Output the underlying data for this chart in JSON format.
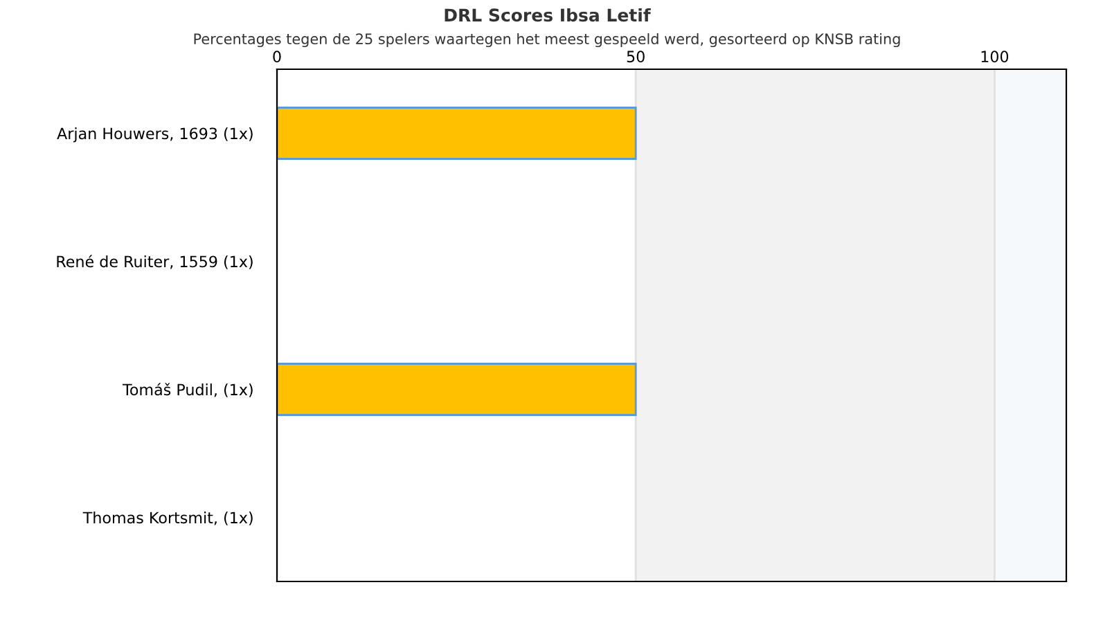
{
  "chart_data": {
    "type": "bar",
    "orientation": "horizontal",
    "title": "DRL Scores Ibsa Letif",
    "subtitle": "Percentages tegen de 25 spelers waartegen het meest gespeeld werd, gesorteerd op KNSB rating",
    "categories": [
      "Arjan Houwers, 1693 (1x)",
      "René de Ruiter, 1559 (1x)",
      "Tomáš Pudil, (1x)",
      "Thomas Kortsmit, (1x)"
    ],
    "values": [
      50,
      0,
      50,
      0
    ],
    "color": "#ffc000",
    "xlim": [
      0,
      110
    ],
    "xticks": [
      0,
      50,
      100
    ],
    "grid": "x",
    "bands": [
      {
        "axis": "x",
        "from": 50,
        "to": 100,
        "color": "#f2f2f2"
      },
      {
        "axis": "x",
        "from": 100,
        "to": 110,
        "color": "#f6f9fc"
      }
    ]
  }
}
